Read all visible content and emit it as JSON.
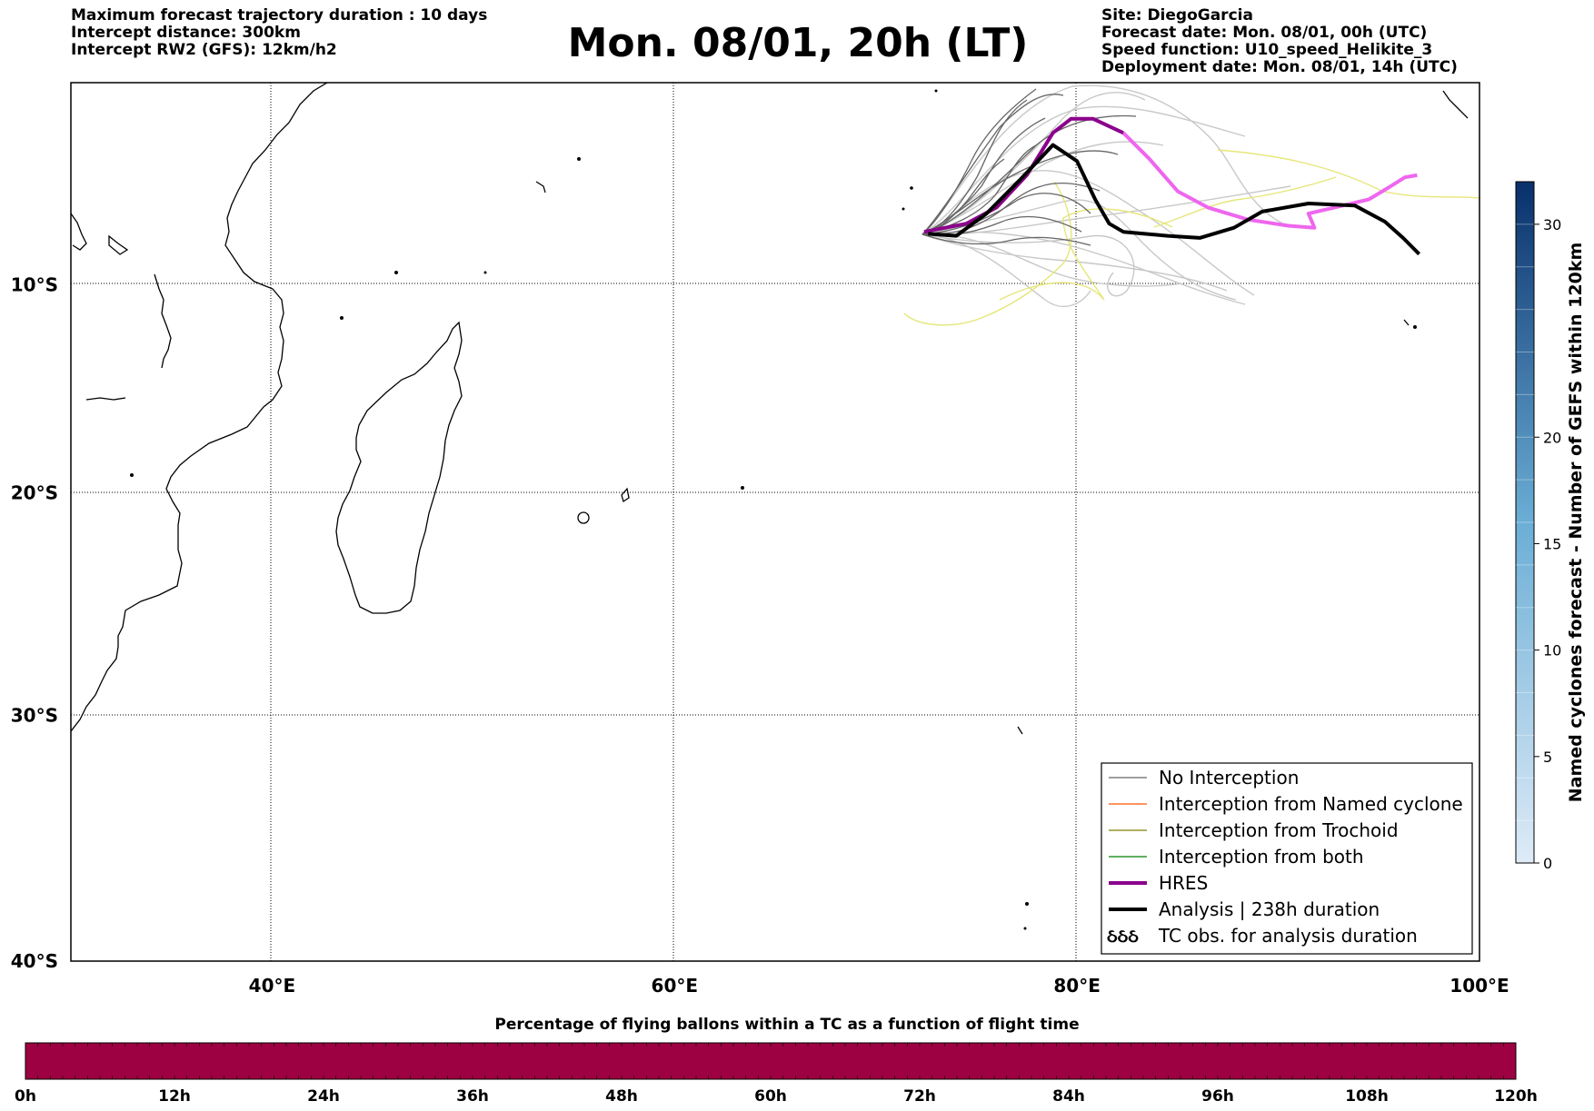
{
  "header": {
    "left": [
      "Maximum forecast trajectory duration : 10 days",
      "Intercept distance: 300km",
      "Intercept RW2 (GFS):  12km/h2"
    ],
    "title": "Mon. 08/01, 20h (LT)",
    "right": [
      "Site: DiegoGarcia",
      "Forecast date: Mon. 08/01, 00h (UTC)",
      "Speed function: U10_speed_Helikite_3",
      "Deployment date: Mon. 08/01, 14h (UTC)"
    ]
  },
  "map": {
    "lon_range": [
      30,
      100
    ],
    "lat_range": [
      -40,
      0
    ],
    "lon_ticks": [
      {
        "value": 40,
        "label": "40°E"
      },
      {
        "value": 60,
        "label": "60°E"
      },
      {
        "value": 80,
        "label": "80°E"
      },
      {
        "value": 100,
        "label": "100°E"
      }
    ],
    "lat_ticks": [
      {
        "value": -10,
        "label": "10°S"
      },
      {
        "value": -20,
        "label": "20°S"
      },
      {
        "value": -30,
        "label": "30°S"
      },
      {
        "value": -40,
        "label": "40°S"
      }
    ],
    "grid": "dotted",
    "colors": {
      "no_interception": "#666666",
      "named_cyclone": "#ff5500",
      "trochoid": "#808000",
      "both": "#008000",
      "hres_dark": "#8b008b",
      "hres_light": "#ee66ee",
      "analysis": "#000000",
      "light_tracks": "#c8c8c8",
      "yellow_tracks": "#e6e67a"
    },
    "hres_track": [
      [
        72.4,
        -7.4
      ],
      [
        74.5,
        -7.0
      ],
      [
        76.0,
        -6.2
      ],
      [
        77.5,
        -4.6
      ],
      [
        78.8,
        -2.5
      ],
      [
        79.7,
        -1.8
      ],
      [
        80.8,
        -1.8
      ],
      [
        82.3,
        -2.5
      ]
    ],
    "hres_continuation": [
      [
        82.3,
        -2.5
      ],
      [
        83.6,
        -3.8
      ],
      [
        85.0,
        -5.4
      ],
      [
        86.5,
        -6.2
      ],
      [
        88.5,
        -6.8
      ],
      [
        90.5,
        -7.1
      ],
      [
        91.8,
        -7.2
      ],
      [
        91.5,
        -6.5
      ],
      [
        92.8,
        -6.2
      ],
      [
        94.5,
        -5.8
      ],
      [
        95.5,
        -5.2
      ],
      [
        96.3,
        -4.7
      ],
      [
        96.9,
        -4.6
      ]
    ],
    "analysis_track": [
      [
        72.6,
        -7.5
      ],
      [
        74.0,
        -7.6
      ],
      [
        75.5,
        -6.5
      ],
      [
        77.2,
        -4.8
      ],
      [
        78.8,
        -3.1
      ],
      [
        80.0,
        -3.9
      ],
      [
        80.9,
        -5.8
      ],
      [
        81.6,
        -7.0
      ],
      [
        82.3,
        -7.4
      ],
      [
        84.5,
        -7.6
      ],
      [
        86.1,
        -7.7
      ],
      [
        87.8,
        -7.2
      ],
      [
        89.2,
        -6.4
      ],
      [
        91.5,
        -6.0
      ],
      [
        93.8,
        -6.1
      ],
      [
        95.3,
        -6.9
      ],
      [
        96.2,
        -7.7
      ],
      [
        97.0,
        -8.5
      ]
    ]
  },
  "legend": [
    {
      "label": "No Interception",
      "color": "#666666",
      "width": 1.2,
      "kind": "line"
    },
    {
      "label": "Interception from Named cyclone",
      "color": "#ff5500",
      "width": 1.2,
      "kind": "line"
    },
    {
      "label": "Interception from Trochoid",
      "color": "#808000",
      "width": 1.2,
      "kind": "line"
    },
    {
      "label": "Interception from both",
      "color": "#008000",
      "width": 1.2,
      "kind": "line"
    },
    {
      "label": "HRES",
      "color": "#8b008b",
      "width": 4,
      "kind": "line"
    },
    {
      "label": "Analysis | 238h duration",
      "color": "#000000",
      "width": 4,
      "kind": "line"
    },
    {
      "label": "TC obs. for analysis duration",
      "color": "#000000",
      "width": 1,
      "kind": "symbol"
    }
  ],
  "colorbar_right": {
    "title": "Named cyclones forecast - Number of GEFS within 120km",
    "range": [
      0,
      32
    ],
    "ticks": [
      {
        "value": 0,
        "label": "0"
      },
      {
        "value": 5,
        "label": "5"
      },
      {
        "value": 10,
        "label": "10"
      },
      {
        "value": 15,
        "label": "15"
      },
      {
        "value": 20,
        "label": "20"
      },
      {
        "value": 30,
        "label": "30"
      }
    ],
    "color_low": "#deebf7",
    "color_high": "#08306b"
  },
  "colorbar_bottom": {
    "title": "Percentage of flying ballons within a TC as a function of flight time",
    "fill_color": "#9e0142",
    "ticks": [
      "0h",
      "12h",
      "24h",
      "36h",
      "48h",
      "60h",
      "72h",
      "84h",
      "96h",
      "108h",
      "120h"
    ]
  }
}
